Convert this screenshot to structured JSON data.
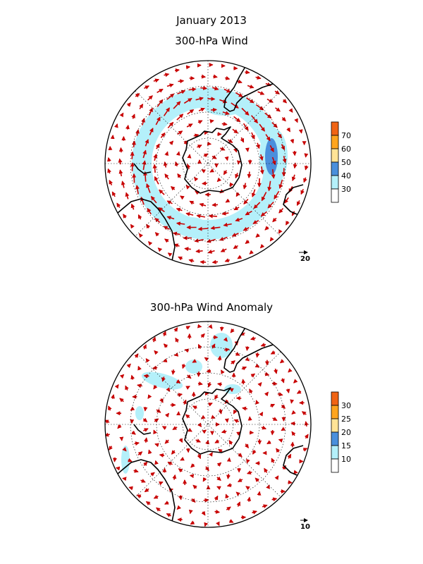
{
  "header": {
    "title": "January 2013"
  },
  "panels": [
    {
      "id": "wind",
      "title": "300-hPa Wind",
      "reference_vector_label": "20",
      "colorbar": {
        "labels": [
          "30",
          "40",
          "50",
          "60",
          "70"
        ],
        "colors": [
          "#ffffff",
          "#b4f0fa",
          "#4a8fdc",
          "#ffe396",
          "#ffa51e",
          "#f06414"
        ]
      }
    },
    {
      "id": "anomaly",
      "title": "300-hPa Wind Anomaly",
      "reference_vector_label": "10",
      "colorbar": {
        "labels": [
          "10",
          "15",
          "20",
          "25",
          "30"
        ],
        "colors": [
          "#ffffff",
          "#b4f0fa",
          "#4a8fdc",
          "#ffe396",
          "#ffa51e",
          "#f06414"
        ]
      }
    }
  ],
  "colors": {
    "vector": "#c80000",
    "coastline": "#000000",
    "grid": "#000000"
  }
}
